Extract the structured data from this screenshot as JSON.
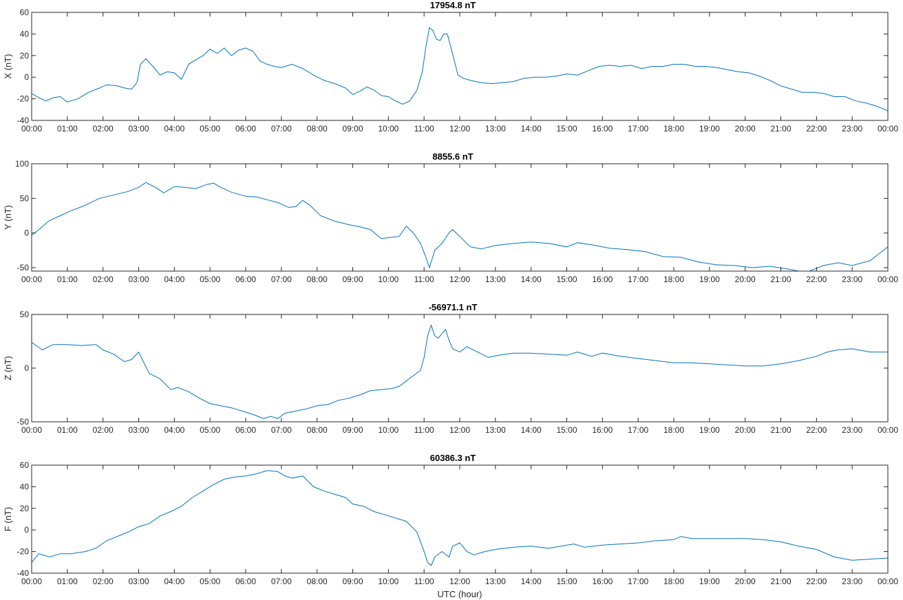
{
  "chart_data": [
    {
      "type": "line",
      "title": "17954.8 nT",
      "ylabel": "X (nT)",
      "xlabel": "",
      "ylim": [
        -40,
        60
      ],
      "yticks": [
        "-40",
        "-20",
        "0",
        "20",
        "40",
        "60"
      ],
      "xlim": [
        0,
        24
      ],
      "xticks": [
        "00:00",
        "01:00",
        "02:00",
        "03:00",
        "04:00",
        "05:00",
        "06:00",
        "07:00",
        "08:00",
        "09:00",
        "10:00",
        "11:00",
        "12:00",
        "13:00",
        "14:00",
        "15:00",
        "16:00",
        "17:00",
        "18:00",
        "19:00",
        "20:00",
        "21:00",
        "22:00",
        "23:00",
        "00:00"
      ],
      "grid": false,
      "color": "#0072bd",
      "series": [
        {
          "x": [
            0,
            0.2,
            0.4,
            0.6,
            0.8,
            1.0,
            1.3,
            1.6,
            1.9,
            2.1,
            2.4,
            2.6,
            2.8,
            2.95,
            3.05,
            3.2,
            3.4,
            3.6,
            3.8,
            4.0,
            4.2,
            4.4,
            4.6,
            4.8,
            5.0,
            5.2,
            5.4,
            5.6,
            5.8,
            6.0,
            6.2,
            6.4,
            6.6,
            6.8,
            7.0,
            7.3,
            7.6,
            7.9,
            8.2,
            8.5,
            8.8,
            9.0,
            9.2,
            9.4,
            9.6,
            9.8,
            10.0,
            10.2,
            10.4,
            10.6,
            10.8,
            10.95,
            11.05,
            11.15,
            11.25,
            11.35,
            11.45,
            11.55,
            11.65,
            11.75,
            11.85,
            11.95,
            12.1,
            12.3,
            12.6,
            12.9,
            13.2,
            13.5,
            13.8,
            14.1,
            14.4,
            14.7,
            15.0,
            15.3,
            15.6,
            15.9,
            16.2,
            16.5,
            16.8,
            17.1,
            17.4,
            17.7,
            18.0,
            18.3,
            18.6,
            18.9,
            19.2,
            19.5,
            19.8,
            20.1,
            20.4,
            20.7,
            21.0,
            21.3,
            21.6,
            21.9,
            22.2,
            22.5,
            22.8,
            23.1,
            23.4,
            23.7,
            24.0
          ],
          "y": [
            -15,
            -19,
            -22,
            -19,
            -18,
            -23,
            -20,
            -14,
            -10,
            -7,
            -8,
            -10,
            -11,
            -5,
            12,
            17,
            10,
            2,
            5,
            4,
            -2,
            12,
            16,
            20,
            26,
            22,
            27,
            20,
            25,
            27,
            24,
            15,
            12,
            10,
            9,
            12,
            8,
            2,
            -3,
            -6,
            -10,
            -16,
            -13,
            -9,
            -12,
            -17,
            -18,
            -22,
            -25,
            -22,
            -12,
            5,
            28,
            46,
            43,
            35,
            34,
            40,
            40,
            28,
            15,
            2,
            -1,
            -3,
            -5,
            -6,
            -5,
            -4,
            -1,
            0,
            0,
            1,
            3,
            2,
            6,
            10,
            11,
            10,
            11,
            8,
            10,
            10,
            12,
            12,
            10,
            10,
            9,
            7,
            5,
            4,
            1,
            -3,
            -8,
            -11,
            -14,
            -14,
            -15,
            -18,
            -18,
            -22,
            -24,
            -27,
            -31
          ]
        }
      ]
    },
    {
      "type": "line",
      "title": "8855.6 nT",
      "ylabel": "Y (nT)",
      "xlabel": "",
      "ylim": [
        -55,
        100
      ],
      "yticks": [
        "-50",
        "0",
        "50",
        "100"
      ],
      "xlim": [
        0,
        24
      ],
      "xticks": [
        "00:00",
        "01:00",
        "02:00",
        "03:00",
        "04:00",
        "05:00",
        "06:00",
        "07:00",
        "08:00",
        "09:00",
        "10:00",
        "11:00",
        "12:00",
        "13:00",
        "14:00",
        "15:00",
        "16:00",
        "17:00",
        "18:00",
        "19:00",
        "20:00",
        "21:00",
        "22:00",
        "23:00",
        "00:00"
      ],
      "grid": false,
      "color": "#0072bd",
      "series": [
        {
          "x": [
            0,
            0.2,
            0.5,
            0.8,
            1.1,
            1.5,
            1.9,
            2.3,
            2.7,
            3.0,
            3.2,
            3.5,
            3.7,
            4.0,
            4.3,
            4.6,
            4.9,
            5.1,
            5.3,
            5.6,
            6.0,
            6.3,
            6.6,
            6.9,
            7.2,
            7.4,
            7.6,
            7.8,
            8.1,
            8.5,
            8.9,
            9.2,
            9.5,
            9.8,
            10.1,
            10.3,
            10.5,
            10.7,
            10.9,
            11.05,
            11.15,
            11.3,
            11.5,
            11.7,
            11.8,
            11.9,
            12.1,
            12.3,
            12.6,
            13.0,
            13.5,
            14.0,
            14.5,
            15.0,
            15.3,
            15.7,
            16.2,
            16.7,
            17.2,
            17.7,
            18.2,
            18.7,
            19.2,
            19.7,
            20.2,
            20.7,
            21.2,
            21.5,
            21.8,
            22.2,
            22.6,
            23.0,
            23.5,
            24.0
          ],
          "y": [
            -3,
            5,
            18,
            25,
            32,
            40,
            50,
            55,
            60,
            66,
            73,
            65,
            58,
            67,
            66,
            64,
            70,
            72,
            66,
            59,
            53,
            52,
            48,
            44,
            37,
            38,
            47,
            40,
            25,
            17,
            12,
            9,
            5,
            -8,
            -6,
            -5,
            10,
            0,
            -15,
            -35,
            -50,
            -25,
            -15,
            0,
            5,
            0,
            -10,
            -20,
            -23,
            -18,
            -15,
            -13,
            -15,
            -20,
            -14,
            -17,
            -22,
            -24,
            -27,
            -34,
            -35,
            -42,
            -46,
            -47,
            -50,
            -48,
            -52,
            -55,
            -55,
            -47,
            -43,
            -47,
            -40,
            -20
          ]
        }
      ]
    },
    {
      "type": "line",
      "title": "-56971.1 nT",
      "ylabel": "Z (nT)",
      "xlabel": "",
      "ylim": [
        -50,
        50
      ],
      "yticks": [
        "-50",
        "0",
        "50"
      ],
      "xlim": [
        0,
        24
      ],
      "xticks": [
        "00:00",
        "01:00",
        "02:00",
        "03:00",
        "04:00",
        "05:00",
        "06:00",
        "07:00",
        "08:00",
        "09:00",
        "10:00",
        "11:00",
        "12:00",
        "13:00",
        "14:00",
        "15:00",
        "16:00",
        "17:00",
        "18:00",
        "19:00",
        "20:00",
        "21:00",
        "22:00",
        "23:00",
        "00:00"
      ],
      "grid": false,
      "color": "#0072bd",
      "series": [
        {
          "x": [
            0,
            0.3,
            0.6,
            1.0,
            1.4,
            1.8,
            2.0,
            2.3,
            2.6,
            2.8,
            3.0,
            3.1,
            3.3,
            3.6,
            3.9,
            4.1,
            4.4,
            4.7,
            5.0,
            5.3,
            5.6,
            5.9,
            6.2,
            6.5,
            6.7,
            6.9,
            7.1,
            7.4,
            7.7,
            8.0,
            8.3,
            8.6,
            8.9,
            9.2,
            9.5,
            9.8,
            10.1,
            10.3,
            10.5,
            10.7,
            10.9,
            11.0,
            11.1,
            11.2,
            11.3,
            11.4,
            11.5,
            11.6,
            11.7,
            11.8,
            12.0,
            12.2,
            12.5,
            12.8,
            13.1,
            13.5,
            14.0,
            14.5,
            15.0,
            15.3,
            15.7,
            16.0,
            16.5,
            17.0,
            17.5,
            18.0,
            18.5,
            19.0,
            19.5,
            20.0,
            20.5,
            21.0,
            21.5,
            22.0,
            22.3,
            22.6,
            23.0,
            23.5,
            24.0
          ],
          "y": [
            24,
            17,
            22,
            22,
            21,
            22,
            17,
            13,
            6,
            8,
            15,
            8,
            -5,
            -10,
            -20,
            -18,
            -22,
            -28,
            -33,
            -35,
            -37,
            -40,
            -43,
            -47,
            -45,
            -47,
            -42,
            -40,
            -38,
            -35,
            -34,
            -30,
            -28,
            -25,
            -21,
            -20,
            -19,
            -17,
            -12,
            -7,
            -2,
            10,
            30,
            40,
            30,
            28,
            32,
            36,
            26,
            18,
            15,
            20,
            15,
            10,
            12,
            14,
            14,
            13,
            12,
            15,
            11,
            14,
            11,
            9,
            7,
            5,
            5,
            4,
            3,
            2,
            2,
            4,
            7,
            11,
            15,
            17,
            18,
            15,
            15
          ]
        }
      ]
    },
    {
      "type": "line",
      "title": "60386.3 nT",
      "ylabel": "F (nT)",
      "xlabel": "UTC (hour)",
      "ylim": [
        -40,
        60
      ],
      "yticks": [
        "-40",
        "-20",
        "0",
        "20",
        "40",
        "60"
      ],
      "xlim": [
        0,
        24
      ],
      "xticks": [
        "00:00",
        "01:00",
        "02:00",
        "03:00",
        "04:00",
        "05:00",
        "06:00",
        "07:00",
        "08:00",
        "09:00",
        "10:00",
        "11:00",
        "12:00",
        "13:00",
        "14:00",
        "15:00",
        "16:00",
        "17:00",
        "18:00",
        "19:00",
        "20:00",
        "21:00",
        "22:00",
        "23:00",
        "00:00"
      ],
      "grid": false,
      "color": "#0072bd",
      "series": [
        {
          "x": [
            0,
            0.2,
            0.5,
            0.8,
            1.1,
            1.5,
            1.8,
            2.1,
            2.4,
            2.7,
            3.0,
            3.3,
            3.6,
            3.9,
            4.2,
            4.5,
            4.8,
            5.1,
            5.4,
            5.7,
            6.0,
            6.3,
            6.6,
            6.9,
            7.1,
            7.3,
            7.6,
            7.9,
            8.2,
            8.5,
            8.8,
            9.0,
            9.3,
            9.6,
            9.9,
            10.2,
            10.5,
            10.8,
            11.0,
            11.1,
            11.2,
            11.3,
            11.5,
            11.7,
            11.8,
            12.0,
            12.2,
            12.4,
            12.7,
            13.0,
            13.5,
            14.0,
            14.5,
            15.0,
            15.2,
            15.5,
            16.0,
            16.5,
            17.0,
            17.5,
            18.0,
            18.2,
            18.5,
            19.0,
            19.5,
            20.0,
            20.5,
            21.0,
            21.5,
            22.0,
            22.5,
            23.0,
            23.5,
            24.0
          ],
          "y": [
            -30,
            -22,
            -25,
            -22,
            -22,
            -20,
            -17,
            -10,
            -6,
            -2,
            3,
            6,
            13,
            17,
            22,
            30,
            36,
            42,
            47,
            49,
            50,
            52,
            55,
            54,
            50,
            48,
            50,
            40,
            36,
            33,
            30,
            24,
            22,
            17,
            14,
            11,
            8,
            -2,
            -20,
            -30,
            -33,
            -25,
            -20,
            -25,
            -15,
            -12,
            -20,
            -23,
            -20,
            -18,
            -16,
            -15,
            -17,
            -14,
            -13,
            -16,
            -14,
            -13,
            -12,
            -10,
            -9,
            -6,
            -8,
            -8,
            -8,
            -8,
            -9,
            -11,
            -15,
            -18,
            -25,
            -28,
            -27,
            -26
          ]
        }
      ]
    }
  ]
}
